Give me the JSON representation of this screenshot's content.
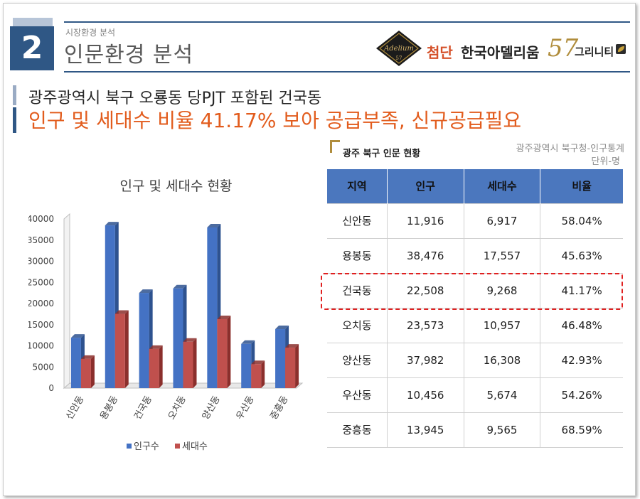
{
  "header": {
    "section_number": "2",
    "subtitle": "시장환경 분석",
    "title": "인문환경 분석"
  },
  "brand": {
    "seal_text": "Adelium",
    "seal_number": "57",
    "cheomdan": "첨단",
    "name": "한국아델리움",
    "number": "57",
    "greenity": "그리니티"
  },
  "headline": {
    "line1": "광주광역시 북구 오룡동 당PJT 포함된 건국동",
    "line2": "인구 및 세대수 비율 41.17% 보아 공급부족, 신규공급필요"
  },
  "table": {
    "title": "광주 북구 인문 현황",
    "source": "광주광역시 북구청-인구통계",
    "unit": "단위-명",
    "headers": [
      "지역",
      "인구",
      "세대수",
      "비율"
    ],
    "rows": [
      [
        "신안동",
        "11,916",
        "6,917",
        "58.04%"
      ],
      [
        "용봉동",
        "38,476",
        "17,557",
        "45.63%"
      ],
      [
        "건국동",
        "22,508",
        "9,268",
        "41.17%"
      ],
      [
        "오치동",
        "23,573",
        "10,957",
        "46.48%"
      ],
      [
        "양산동",
        "37,982",
        "16,308",
        "42.93%"
      ],
      [
        "우산동",
        "10,456",
        "5,674",
        "54.26%"
      ],
      [
        "중흥동",
        "13,945",
        "9,565",
        "68.59%"
      ]
    ],
    "highlighted_row": "건국동"
  },
  "colors": {
    "navy": "#2f5785",
    "accent_orange": "#e25c1d",
    "table_header": "#4b77be",
    "series_population": "#4472c4",
    "series_households": "#c0504d",
    "highlight_border": "#e02020"
  },
  "chart_data": {
    "type": "bar",
    "title": "인구 및 세대수 현황",
    "categories": [
      "신안동",
      "용봉동",
      "건국동",
      "오치동",
      "양산동",
      "우산동",
      "중흥동"
    ],
    "series": [
      {
        "name": "인구수",
        "values": [
          11916,
          38476,
          22508,
          23573,
          37982,
          10456,
          13945
        ]
      },
      {
        "name": "세대수",
        "values": [
          6917,
          17557,
          9268,
          10957,
          16308,
          5674,
          9565
        ]
      }
    ],
    "ylim": [
      0,
      40000
    ],
    "yticks": [
      "0",
      "5000",
      "10000",
      "15000",
      "20000",
      "25000",
      "30000",
      "35000",
      "40000"
    ],
    "legend_position": "bottom",
    "grid": false
  }
}
